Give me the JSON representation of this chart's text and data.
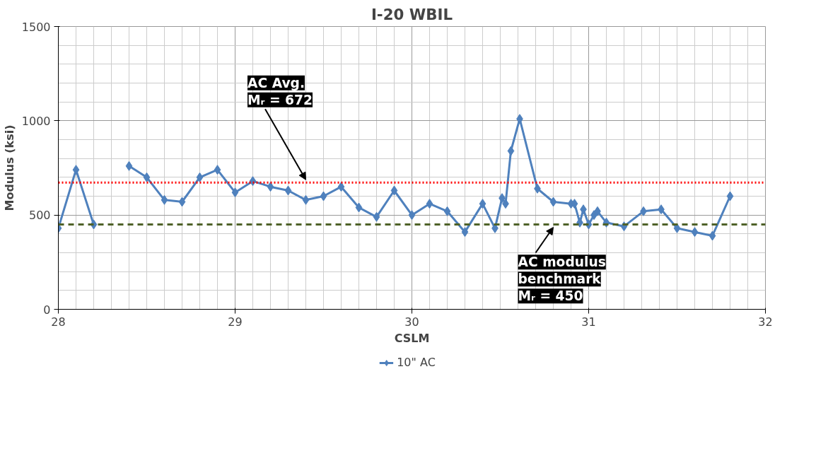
{
  "chart_data": {
    "type": "line",
    "title": "I-20 WBIL",
    "xlabel": "CSLM",
    "ylabel": "Modulus (ksi)",
    "xlim": [
      28,
      32
    ],
    "xticks": [
      28,
      29,
      30,
      31,
      32
    ],
    "ylim": [
      0,
      1500
    ],
    "yticks": [
      0,
      500,
      1000,
      1500
    ],
    "grid": true,
    "legend": "bottom",
    "marker": "diamond",
    "line_style": "solid",
    "series": [
      {
        "name": "10\" AC",
        "color": "#4f81bd",
        "x": [
          28.0,
          28.1,
          28.2,
          28.3,
          28.4,
          28.5,
          28.6,
          28.7,
          28.8,
          28.9,
          29.0,
          29.1,
          29.2,
          29.3,
          29.4,
          29.5,
          29.6,
          29.7,
          29.8,
          29.9,
          30.0,
          30.1,
          30.2,
          30.3,
          30.4,
          30.47,
          30.51,
          30.53,
          30.56,
          30.61,
          30.71,
          30.8,
          30.9,
          30.92,
          30.95,
          30.97,
          31.0,
          31.03,
          31.05,
          31.1,
          31.2,
          31.31,
          31.41,
          31.5,
          31.6,
          31.7,
          31.8
        ],
        "values": [
          430,
          740,
          450,
          null,
          760,
          700,
          580,
          570,
          700,
          740,
          620,
          680,
          650,
          630,
          580,
          600,
          650,
          540,
          490,
          630,
          500,
          560,
          520,
          410,
          560,
          430,
          590,
          560,
          840,
          1010,
          640,
          570,
          560,
          560,
          460,
          530,
          450,
          500,
          520,
          460,
          440,
          520,
          530,
          430,
          410,
          390,
          600
        ]
      }
    ],
    "ref_lines": [
      {
        "axis": "y",
        "value": 672,
        "color": "#ff0000",
        "line_style": "dotted"
      },
      {
        "axis": "y",
        "value": 450,
        "color": "#4f6228",
        "line_style": "dashed"
      }
    ],
    "annotations": [
      {
        "text": "AC Avg.\nMᵣ = 672",
        "x": 29.4,
        "y": 672
      },
      {
        "text": "AC modulus\nbenchmark\nMᵣ = 450",
        "x": 30.8,
        "y": 450
      }
    ]
  }
}
